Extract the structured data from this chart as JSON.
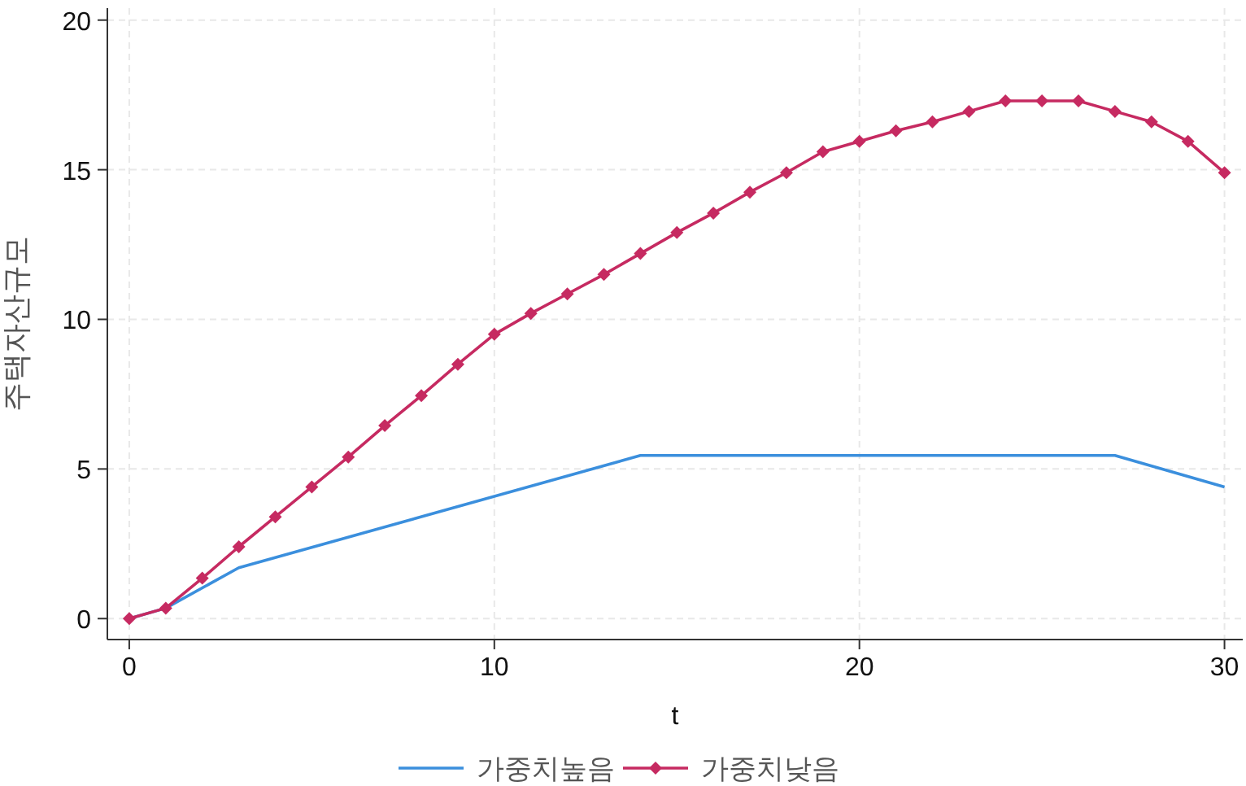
{
  "chart_data": {
    "type": "line",
    "xlabel": "t",
    "ylabel": "주택자산규모",
    "xlim": [
      -0.6,
      30.5
    ],
    "ylim": [
      -0.7,
      20.4
    ],
    "xticks": [
      0,
      10,
      20,
      30
    ],
    "yticks": [
      0,
      5,
      10,
      15,
      20
    ],
    "grid": true,
    "legend": "bottom",
    "series": [
      {
        "name": "가중치높음",
        "color": "#3b8fdd",
        "marker": "none",
        "x": [
          0,
          1,
          3,
          14,
          27,
          30
        ],
        "values": [
          0,
          0.35,
          1.7,
          5.45,
          5.45,
          4.4
        ]
      },
      {
        "name": "가중치낮음",
        "color": "#c62a61",
        "marker": "diamond",
        "x": [
          0,
          1,
          2,
          3,
          4,
          5,
          6,
          7,
          8,
          9,
          10,
          11,
          12,
          13,
          14,
          15,
          16,
          17,
          18,
          19,
          20,
          21,
          22,
          23,
          24,
          25,
          26,
          27,
          28,
          29,
          30
        ],
        "values": [
          0,
          0.35,
          1.35,
          2.4,
          3.4,
          4.4,
          5.4,
          6.45,
          7.45,
          8.5,
          9.5,
          10.2,
          10.85,
          11.5,
          12.2,
          12.9,
          13.55,
          14.25,
          14.9,
          15.6,
          15.95,
          16.3,
          16.6,
          16.95,
          17.3,
          17.3,
          17.3,
          16.95,
          16.6,
          15.95,
          14.9
        ]
      }
    ]
  }
}
